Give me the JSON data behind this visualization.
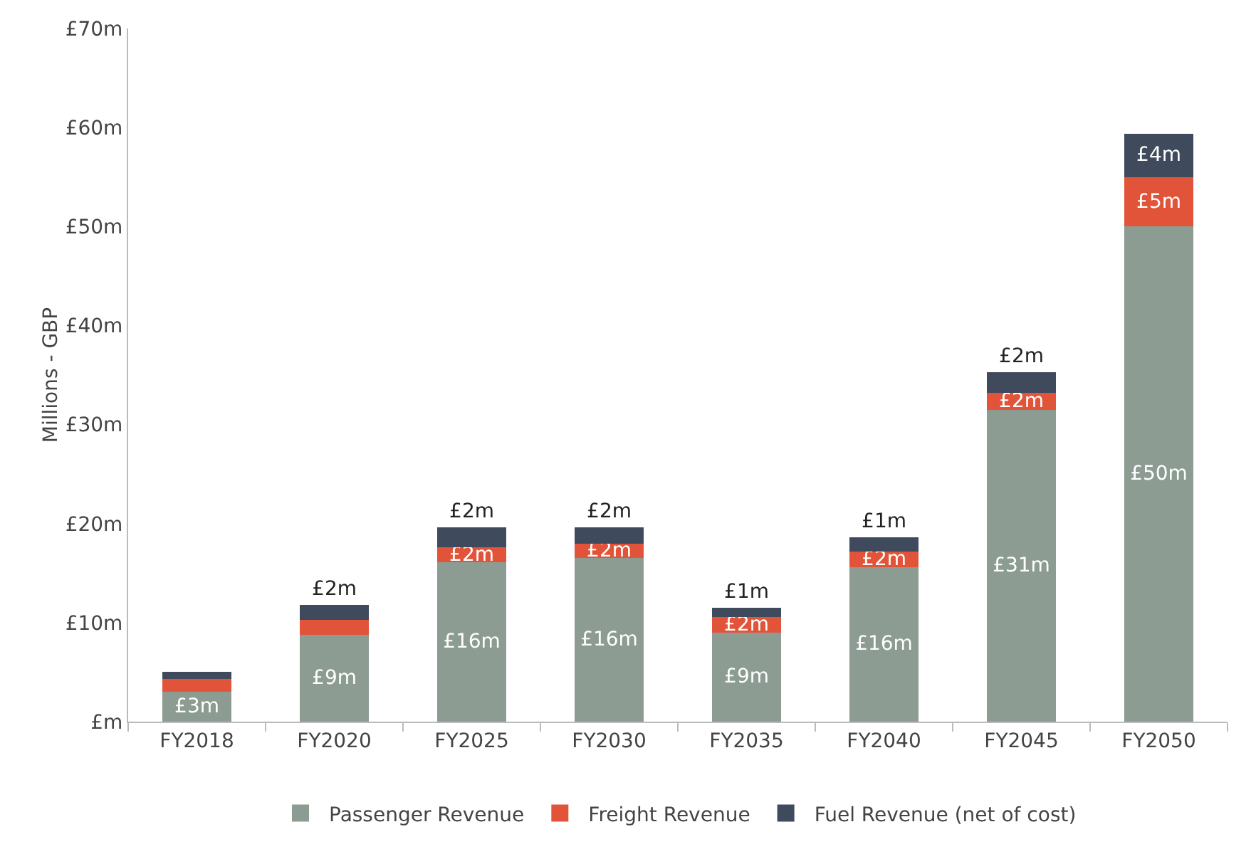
{
  "chart_data": {
    "type": "bar",
    "stacked": true,
    "ylabel": "Millions - GBP",
    "categories": [
      "FY2018",
      "FY2020",
      "FY2025",
      "FY2030",
      "FY2035",
      "FY2040",
      "FY2045",
      "FY2050"
    ],
    "series": [
      {
        "name": "Passenger Revenue",
        "color": "#8c9c92",
        "values": [
          3,
          8.8,
          16.1,
          16.5,
          9,
          15.6,
          31.5,
          50
        ],
        "value_labels": [
          "£3m",
          "£9m",
          "£16m",
          "£16m",
          "£9m",
          "£16m",
          "£31m",
          "£50m"
        ]
      },
      {
        "name": "Freight Revenue",
        "color": "#e2543a",
        "values": [
          1.3,
          1.5,
          1.5,
          1.5,
          1.6,
          1.6,
          1.7,
          5
        ],
        "value_labels": [
          null,
          null,
          "£2m",
          "£2m",
          "£2m",
          "£2m",
          "£2m",
          "£5m"
        ]
      },
      {
        "name": "Fuel Revenue (net of cost)",
        "color": "#3f4a5c",
        "values": [
          0.7,
          1.5,
          2,
          1.6,
          0.9,
          1.4,
          2.1,
          4.4
        ],
        "value_labels": [
          null,
          "£2m",
          "£2m",
          "£2m",
          "£1m",
          "£1m",
          "£2m",
          "£4m"
        ]
      }
    ],
    "ylim": [
      0,
      70
    ],
    "yticks": [
      {
        "value": 0,
        "label": "£m"
      },
      {
        "value": 10,
        "label": "£10m"
      },
      {
        "value": 20,
        "label": "£20m"
      },
      {
        "value": 30,
        "label": "£30m"
      },
      {
        "value": 40,
        "label": "£40m"
      },
      {
        "value": 50,
        "label": "£50m"
      },
      {
        "value": 60,
        "label": "£60m"
      },
      {
        "value": 70,
        "label": "£70m"
      }
    ],
    "grid": false,
    "legend": "bottom"
  }
}
